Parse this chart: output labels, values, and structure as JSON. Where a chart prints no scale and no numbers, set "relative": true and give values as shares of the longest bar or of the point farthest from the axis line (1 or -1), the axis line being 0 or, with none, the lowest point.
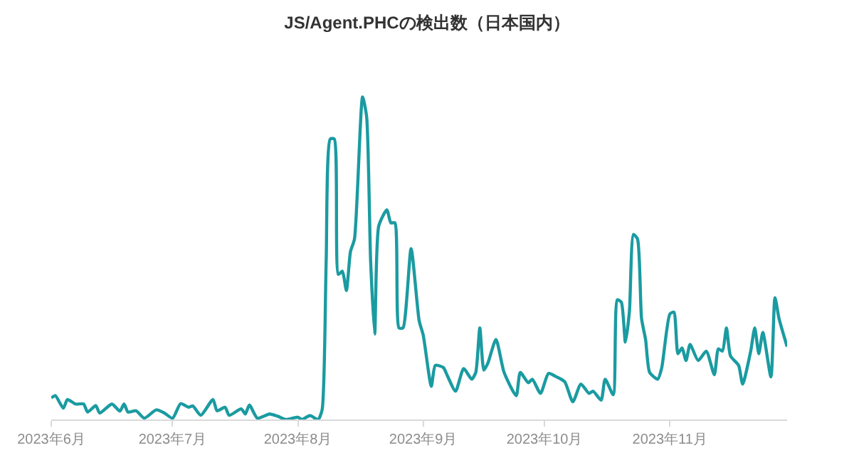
{
  "chart_data": {
    "type": "line",
    "title": "JS/Agent.PHCの検出数（日本国内）",
    "relative": true,
    "marker": "none",
    "line_style": "solid",
    "x": [
      "2023-06-01",
      "2023-06-02",
      "2023-06-04",
      "2023-06-05",
      "2023-06-07",
      "2023-06-09",
      "2023-06-10",
      "2023-06-12",
      "2023-06-13",
      "2023-06-16",
      "2023-06-18",
      "2023-06-19",
      "2023-06-20",
      "2023-06-22",
      "2023-06-24",
      "2023-06-27",
      "2023-06-29",
      "2023-07-01",
      "2023-07-03",
      "2023-07-05",
      "2023-07-06",
      "2023-07-08",
      "2023-07-11",
      "2023-07-12",
      "2023-07-14",
      "2023-07-15",
      "2023-07-18",
      "2023-07-19",
      "2023-07-20",
      "2023-07-22",
      "2023-07-25",
      "2023-07-27",
      "2023-07-29",
      "2023-08-01",
      "2023-08-02",
      "2023-08-04",
      "2023-08-06",
      "2023-08-07",
      "2023-08-08",
      "2023-08-09",
      "2023-08-10",
      "2023-08-11",
      "2023-08-12",
      "2023-08-13",
      "2023-08-14",
      "2023-08-15",
      "2023-08-17",
      "2023-08-18",
      "2023-08-19",
      "2023-08-20",
      "2023-08-21",
      "2023-08-23",
      "2023-08-24",
      "2023-08-25",
      "2023-08-26",
      "2023-08-27",
      "2023-08-29",
      "2023-08-31",
      "2023-09-01",
      "2023-09-03",
      "2023-09-04",
      "2023-09-06",
      "2023-09-07",
      "2023-09-09",
      "2023-09-11",
      "2023-09-13",
      "2023-09-14",
      "2023-09-15",
      "2023-09-16",
      "2023-09-17",
      "2023-09-19",
      "2023-09-21",
      "2023-09-24",
      "2023-09-25",
      "2023-09-27",
      "2023-09-28",
      "2023-09-30",
      "2023-10-02",
      "2023-10-04",
      "2023-10-06",
      "2023-10-08",
      "2023-10-10",
      "2023-10-12",
      "2023-10-13",
      "2023-10-15",
      "2023-10-16",
      "2023-10-18",
      "2023-10-19",
      "2023-10-20",
      "2023-10-21",
      "2023-10-22",
      "2023-10-23",
      "2023-10-24",
      "2023-10-25",
      "2023-10-26",
      "2023-10-27",
      "2023-10-29",
      "2023-10-30",
      "2023-11-01",
      "2023-11-02",
      "2023-11-03",
      "2023-11-04",
      "2023-11-05",
      "2023-11-06",
      "2023-11-08",
      "2023-11-10",
      "2023-11-12",
      "2023-11-13",
      "2023-11-14",
      "2023-11-15",
      "2023-11-16",
      "2023-11-18",
      "2023-11-19",
      "2023-11-21",
      "2023-11-22",
      "2023-11-23",
      "2023-11-24",
      "2023-11-26",
      "2023-11-27",
      "2023-11-28",
      "2023-11-30"
    ],
    "series": [
      {
        "color": "#1a9ba1",
        "values": [
          0.067,
          0.074,
          0.035,
          0.062,
          0.048,
          0.048,
          0.023,
          0.043,
          0.02,
          0.048,
          0.026,
          0.048,
          0.023,
          0.027,
          0.004,
          0.03,
          0.02,
          0.004,
          0.049,
          0.038,
          0.042,
          0.013,
          0.062,
          0.027,
          0.038,
          0.013,
          0.033,
          0.017,
          0.045,
          0.004,
          0.017,
          0.01,
          0.0,
          0.007,
          0.0,
          0.012,
          0.0,
          0.03,
          0.49,
          0.87,
          0.87,
          0.45,
          0.46,
          0.4,
          0.52,
          0.56,
          1.0,
          0.94,
          0.49,
          0.265,
          0.6,
          0.65,
          0.61,
          0.61,
          0.284,
          0.284,
          0.53,
          0.306,
          0.262,
          0.103,
          0.168,
          0.161,
          0.135,
          0.088,
          0.158,
          0.125,
          0.146,
          0.284,
          0.153,
          0.175,
          0.248,
          0.146,
          0.074,
          0.146,
          0.114,
          0.125,
          0.081,
          0.143,
          0.132,
          0.117,
          0.055,
          0.11,
          0.081,
          0.088,
          0.06,
          0.125,
          0.077,
          0.371,
          0.364,
          0.24,
          0.335,
          0.574,
          0.56,
          0.313,
          0.248,
          0.146,
          0.125,
          0.161,
          0.327,
          0.333,
          0.204,
          0.222,
          0.183,
          0.233,
          0.183,
          0.212,
          0.139,
          0.219,
          0.212,
          0.284,
          0.197,
          0.168,
          0.11,
          0.212,
          0.284,
          0.204,
          0.27,
          0.132,
          0.378,
          0.313,
          0.226
        ]
      }
    ],
    "xlim": [
      "2023-06-01",
      "2023-11-30"
    ],
    "xticks": [
      {
        "value": "2023-06-01",
        "label": "2023年6月"
      },
      {
        "value": "2023-07-01",
        "label": "2023年7月"
      },
      {
        "value": "2023-08-01",
        "label": "2023年8月"
      },
      {
        "value": "2023-09-01",
        "label": "2023年9月"
      },
      {
        "value": "2023-10-01",
        "label": "2023年10月"
      },
      {
        "value": "2023-11-01",
        "label": "2023年11月"
      }
    ]
  }
}
